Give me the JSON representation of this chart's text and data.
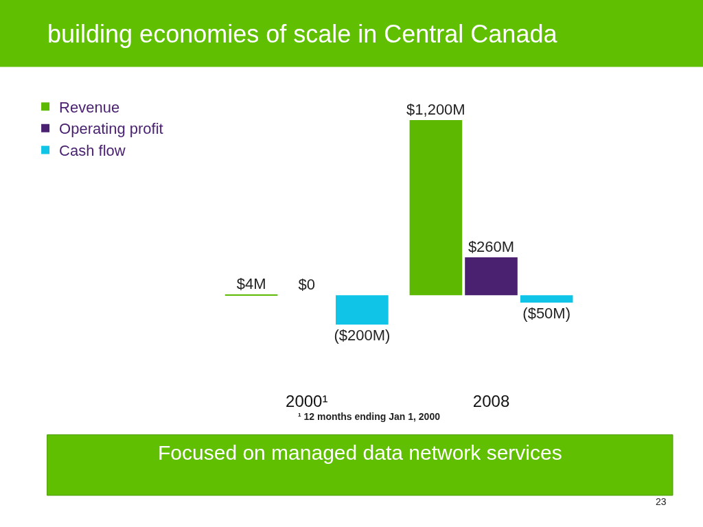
{
  "chart_data": {
    "type": "bar",
    "title": "building economies of scale in Central Canada",
    "categories": [
      "2000¹",
      "2008"
    ],
    "series": [
      {
        "name": "Revenue",
        "color": "#5cb800",
        "values": [
          4,
          1200
        ],
        "value_labels": [
          "$4M",
          "$1,200M"
        ]
      },
      {
        "name": "Operating profit",
        "color": "#4a2170",
        "values": [
          0,
          260
        ],
        "value_labels": [
          "$0",
          "$260M"
        ]
      },
      {
        "name": "Cash flow",
        "color": "#10c4e8",
        "values": [
          -200,
          -50
        ],
        "value_labels": [
          "($200M)",
          "($50M)"
        ]
      }
    ],
    "legend": "top left",
    "annotations": [
      "¹ 12 months ending Jan 1, 2000",
      "Focused on managed data network services",
      "23"
    ]
  }
}
